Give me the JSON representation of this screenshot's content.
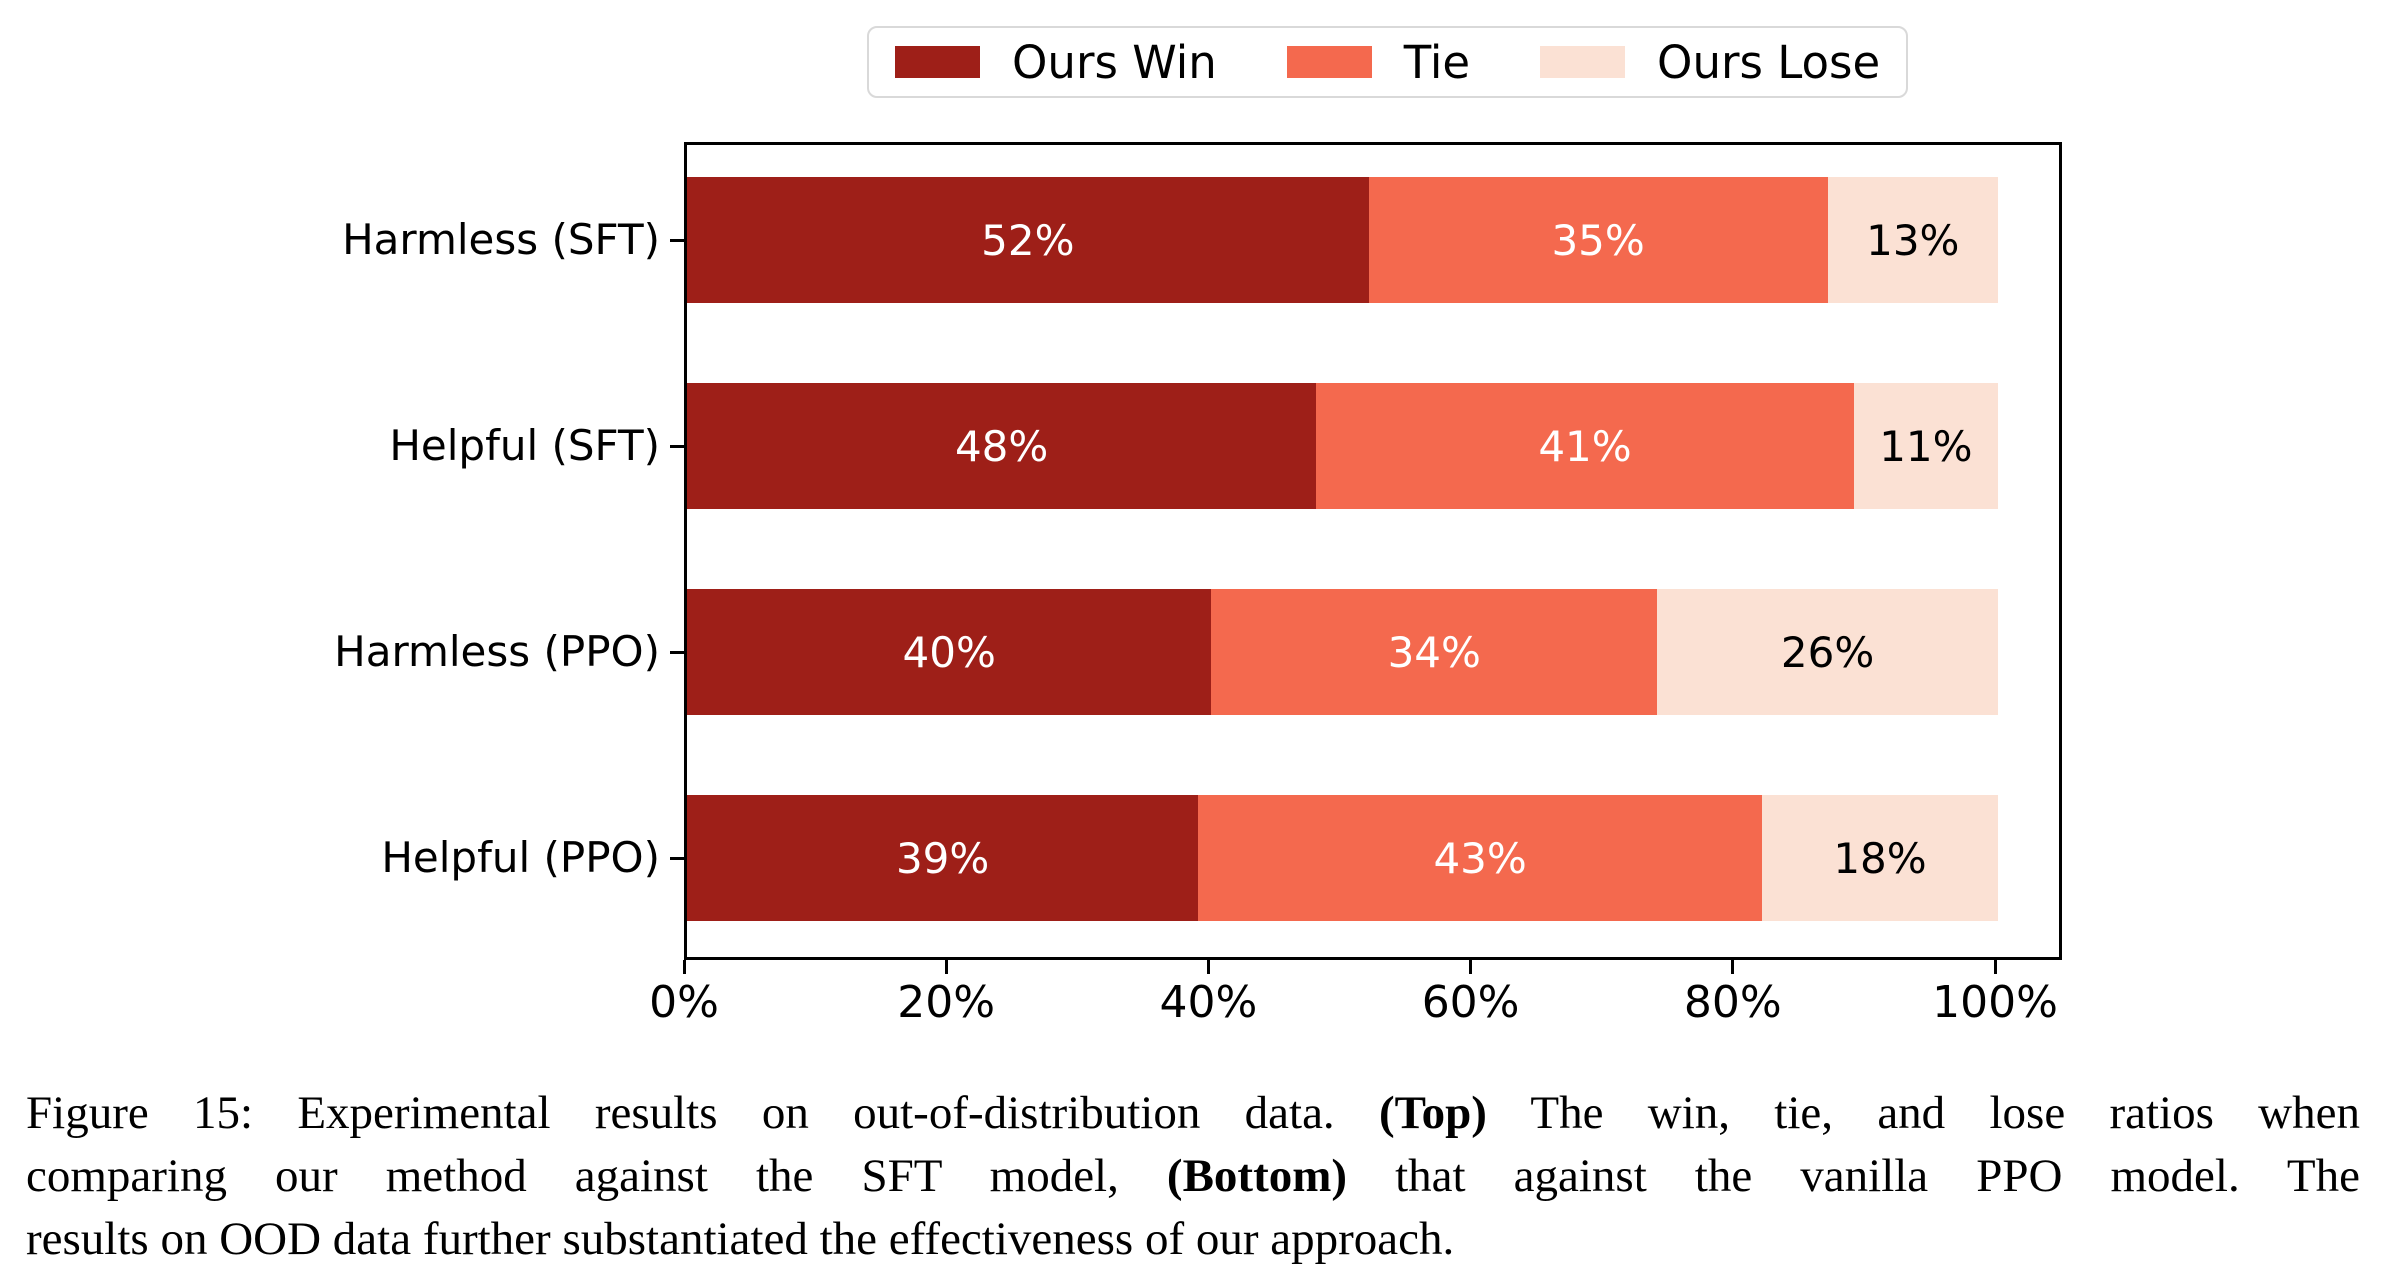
{
  "chart_data": {
    "type": "bar",
    "orientation": "horizontal",
    "stacked": true,
    "title": "",
    "xlabel": "",
    "ylabel": "",
    "grid": false,
    "legend_position": "top-center",
    "xlim": [
      0,
      105
    ],
    "categories": [
      "Harmless (SFT)",
      "Helpful (SFT)",
      "Harmless (PPO)",
      "Helpful (PPO)"
    ],
    "series": [
      {
        "name": "Ours Win",
        "color": "#9e1f18",
        "label_color": "#ffffff",
        "values": [
          52,
          48,
          40,
          39
        ]
      },
      {
        "name": "Tie",
        "color": "#f4694e",
        "label_color": "#ffffff",
        "values": [
          35,
          41,
          34,
          43
        ]
      },
      {
        "name": "Ours Lose",
        "color": "#fbe1d4",
        "label_color": "#000000",
        "values": [
          13,
          11,
          26,
          18
        ]
      }
    ],
    "value_label_suffix": "%",
    "x_ticks": [
      {
        "value": 0,
        "label": "0%"
      },
      {
        "value": 20,
        "label": "20%"
      },
      {
        "value": 40,
        "label": "40%"
      },
      {
        "value": 60,
        "label": "60%"
      },
      {
        "value": 80,
        "label": "80%"
      },
      {
        "value": 100,
        "label": "100%"
      }
    ],
    "frame_color": "#000000",
    "legend_border_color": "#d9d9d9"
  },
  "caption": {
    "lines": [
      {
        "segments": [
          {
            "text": "Figure 15: Experimental results on out-of-distribution data. ",
            "bold": false
          },
          {
            "text": "(Top)",
            "bold": true
          },
          {
            "text": " The win, tie, and lose ratios when",
            "bold": false
          }
        ]
      },
      {
        "segments": [
          {
            "text": "comparing our method against the SFT model, ",
            "bold": false
          },
          {
            "text": "(Bottom)",
            "bold": true
          },
          {
            "text": " that against the vanilla PPO model. The",
            "bold": false
          }
        ]
      },
      {
        "segments": [
          {
            "text": "results on OOD data further substantiated the effectiveness of our approach.",
            "bold": false
          }
        ]
      }
    ]
  }
}
